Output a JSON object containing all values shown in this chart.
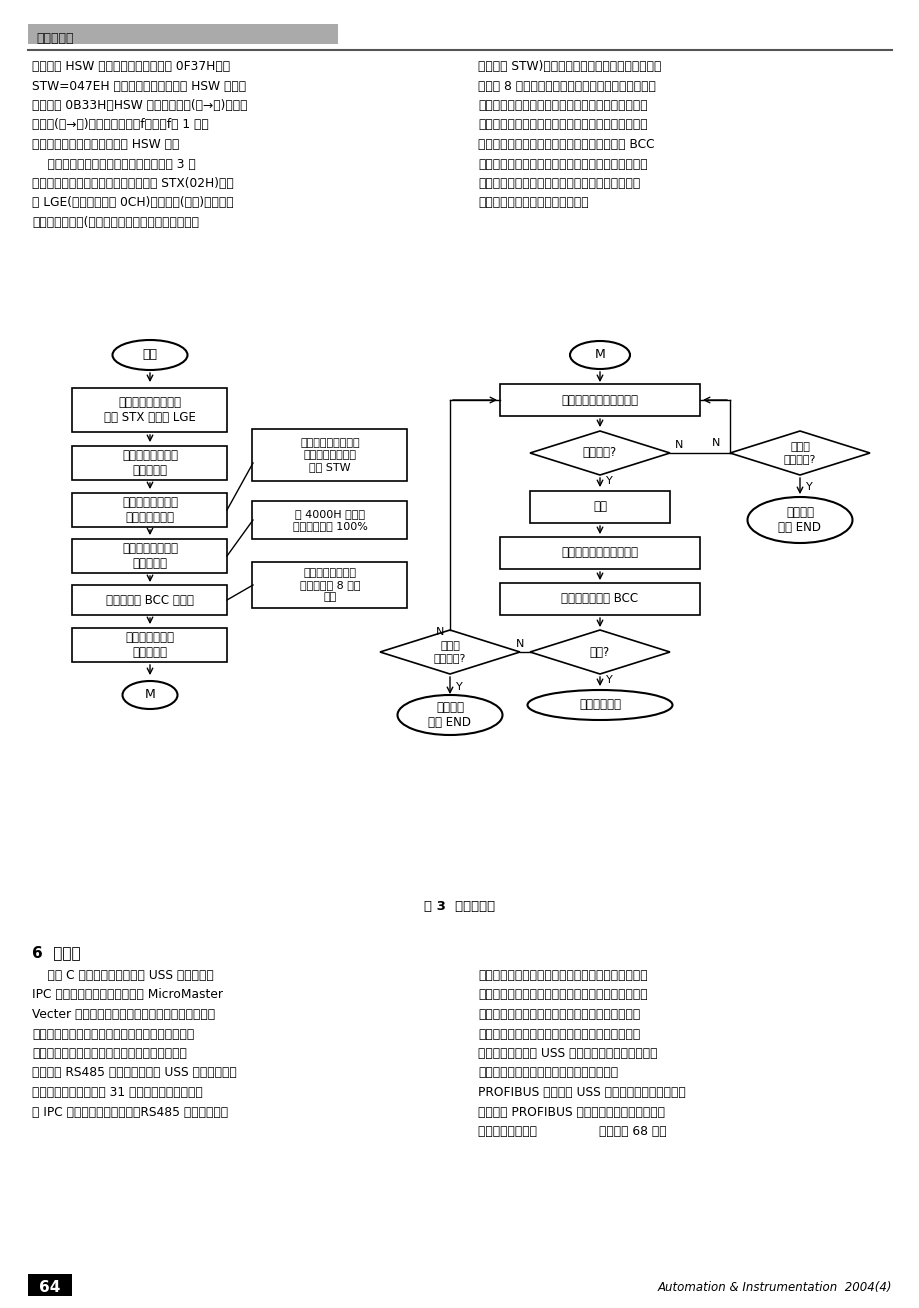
{
  "title_bar": "计算机应用",
  "fig_caption": "图 3  通信流程图",
  "section_title": "6  结束语",
  "footer_page": "64",
  "footer_journal": "Automation & Instrumentation  2004(4)",
  "bg_color": "#ffffff",
  "header_left_lines": [
    "行频率为 HSW 设定，达到频率，返回 0F37H；若",
    "STW=047EH 则电机停止运行，此时 HSW 的值无",
    "效，返回 0B33H。HSW 为频率设定值(主→从)或频率",
    "实际值(从→主)。若要进行频率f设置且f取 1 位小",
    "数，可换算成十六进制，填入 HSW 区。",
    "    工控机与变频器间的通信子流程图如图 3 所",
    "示，首先设置通信报文，包括起始字符 STX(02H)、长",
    "度 LGE(长报文应设为 0CH)、变频器(从站)地址、变",
    "频器的控制命令(选择启动、停止、查询等命令写入"
  ],
  "header_right_lines": [
    "控制字符 STW)以及频率给定值。将全部报文进行异",
    "或产生 8 位校验码。将报文写入串卡发送缓冲区，通",
    "过串口发送缓冲区内容，若发送成功，延时后读取串",
    "卡接收缓冲区内容；若不成功，则重新发送，直到最",
    "大发送次数，返回错误信息。检查返回报文的 BCC",
    "码，若不正确则重新发送报文，直到最大发送次数返",
    "回错误信息；若正确则返回调用程序来选择控制命",
    "令，从而实现对电机的远程控制。"
  ],
  "body_left_lines": [
    "    利用 C 语言编程设计的基于 USS 通信协议的",
    "IPC 工控机与西门子公司生产的 MicroMaster",
    "Vecter 变频器之间的通信，已经成功地实现了工控",
    "机对变频器的远程控制，并能实时检测变频器的运",
    "行状况，实现了对电机的启动与停止的监测与控",
    "制。通过 RS485 串行连接及采用 USS 通信协议，其",
    "远程控制能力能够达到 31 台变频器，从而实现一",
    "台 IPC 对多台变频器的控制。RS485 采用差动输入"
  ],
  "body_right_lines": [
    "方式，能够更好地抑止干扰，提高系统的可靠性。该",
    "系统操作直观，灵活方便，工作准确可靠，能实时采",
    "集和处理运行数据，具有很大的实用性。相信随着",
    "变频调速领域的扩展，这种监控系统将会有更广泛",
    "的应用前景。介于 USS 协议在高速通信时存在一定",
    "的缺陷，不能满足高速通信系统的要求，而",
    "PROFIBUS 能够克服 USS 的这一缺点，正在利用它",
    "进行使用 PROFIBUS 现场总线组成高性能变频器",
    "调速系统的研究。                （下转第 68 页）"
  ]
}
